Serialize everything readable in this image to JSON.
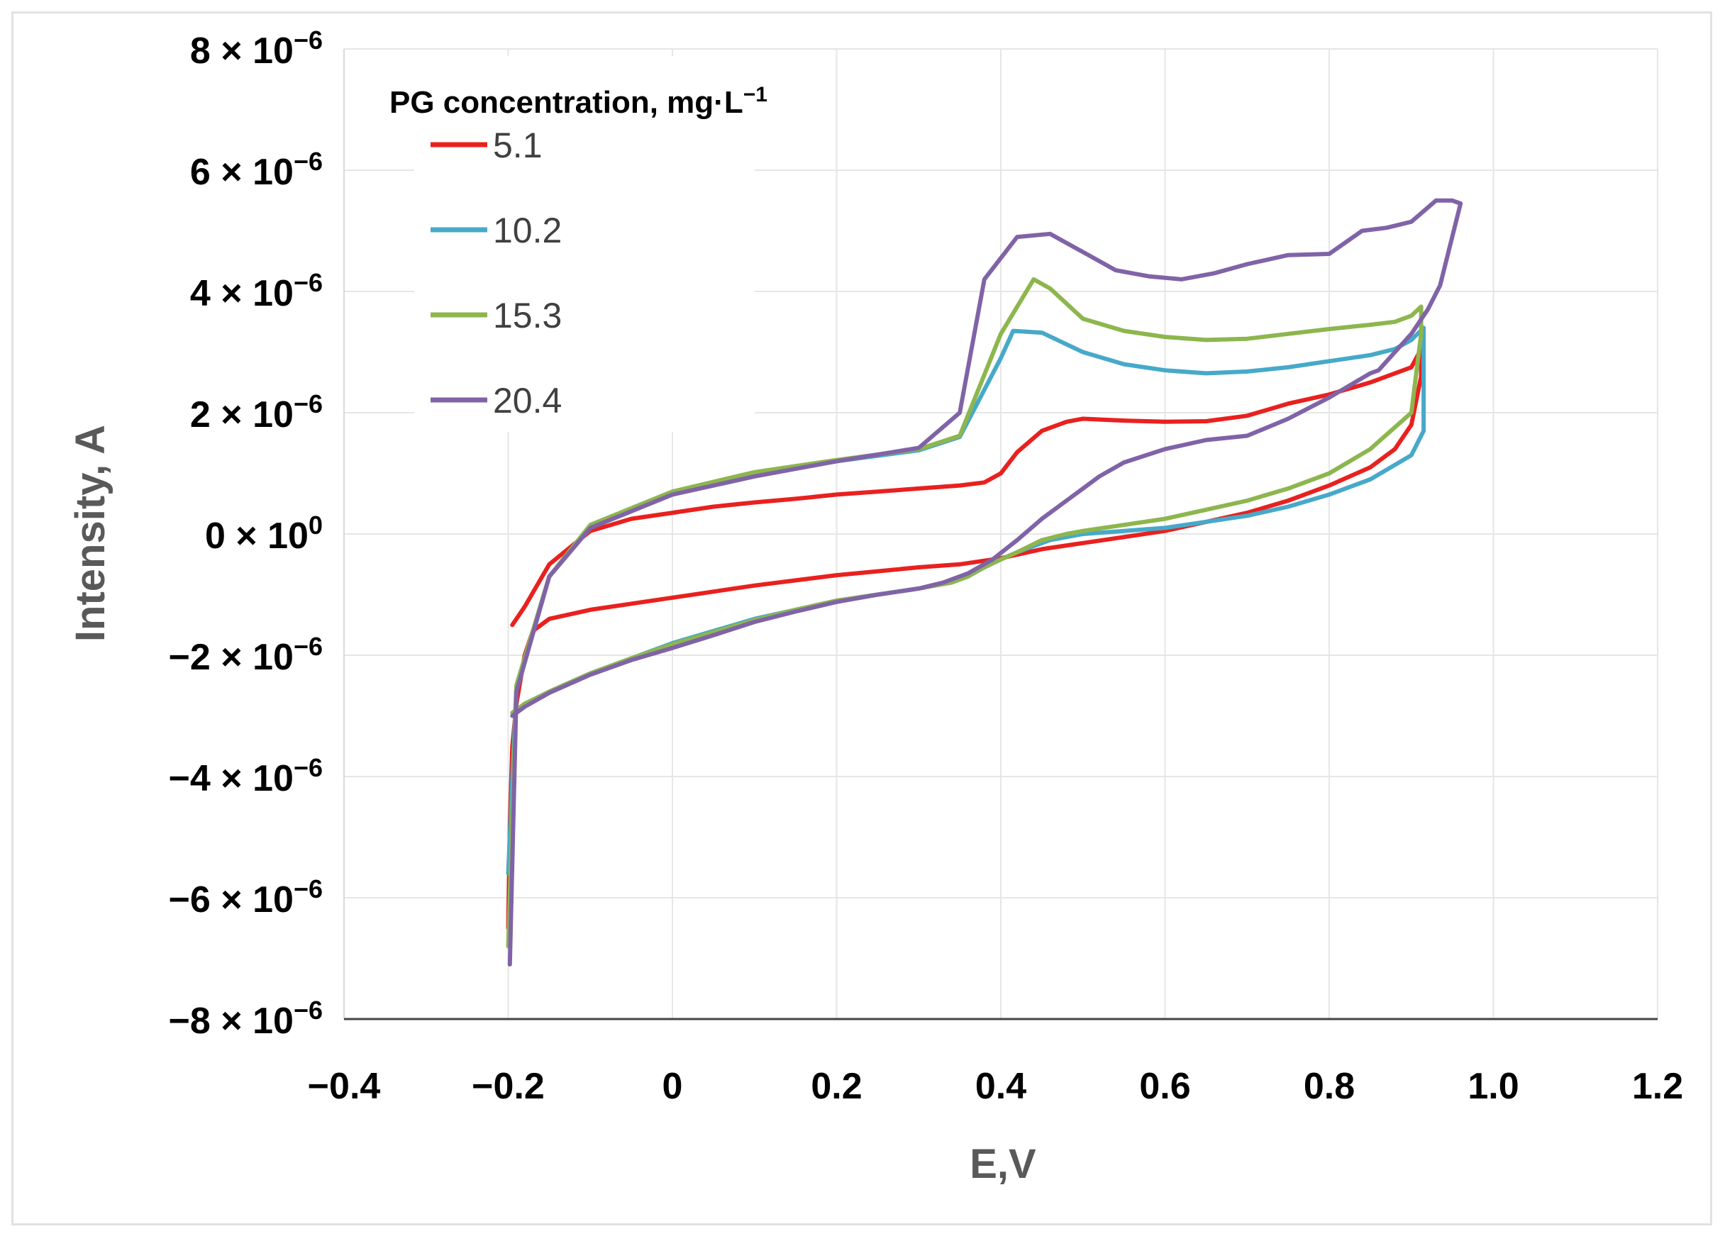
{
  "chart_data": {
    "type": "line",
    "title": "",
    "xlabel": "E,V",
    "ylabel": "Intensity, A",
    "xlim": [
      -0.4,
      1.2
    ],
    "ylim": [
      -8e-06,
      8e-06
    ],
    "x_ticks": [
      -0.4,
      -0.2,
      0,
      0.2,
      0.4,
      0.6,
      0.8,
      1.0,
      1.2
    ],
    "x_tick_labels": [
      "−0.4",
      "−0.2",
      "0",
      "0.2",
      "0.4",
      "0.6",
      "0.8",
      "1.0",
      "1.2"
    ],
    "y_ticks": [
      8e-06,
      6e-06,
      4e-06,
      2e-06,
      0,
      -2e-06,
      -4e-06,
      -6e-06,
      -8e-06
    ],
    "y_tick_labels": [
      {
        "mantissa": "8 × 10",
        "exp": "−6"
      },
      {
        "mantissa": "6 × 10",
        "exp": "−6"
      },
      {
        "mantissa": "4 × 10",
        "exp": "−6"
      },
      {
        "mantissa": "2 × 10",
        "exp": "−6"
      },
      {
        "mantissa": "0 × 10",
        "exp": "0"
      },
      {
        "mantissa": "−2 × 10",
        "exp": "−6"
      },
      {
        "mantissa": "−4 × 10",
        "exp": "−6"
      },
      {
        "mantissa": "−6 × 10",
        "exp": "−6"
      },
      {
        "mantissa": "−8 × 10",
        "exp": "−6"
      }
    ],
    "grid": true,
    "legend": {
      "title": "PG concentration, mg·L",
      "title_exp": "−1",
      "placement": "top-left"
    },
    "series": [
      {
        "name": "5.1",
        "color": "#e8211f",
        "x": [
          -0.195,
          -0.18,
          -0.15,
          -0.1,
          -0.05,
          0,
          0.05,
          0.1,
          0.15,
          0.2,
          0.25,
          0.3,
          0.35,
          0.38,
          0.4,
          0.42,
          0.45,
          0.48,
          0.5,
          0.55,
          0.6,
          0.65,
          0.7,
          0.75,
          0.8,
          0.85,
          0.9,
          0.912,
          0.912,
          0.9,
          0.88,
          0.85,
          0.8,
          0.75,
          0.7,
          0.65,
          0.6,
          0.55,
          0.5,
          0.45,
          0.4,
          0.35,
          0.3,
          0.2,
          0.1,
          0,
          -0.1,
          -0.15,
          -0.17,
          -0.18,
          -0.19,
          -0.195,
          -0.198,
          -0.2
        ],
        "y": [
          -1.5e-06,
          -1.2e-06,
          -5e-07,
          5e-08,
          2.5e-07,
          3.5e-07,
          4.5e-07,
          5.2e-07,
          5.8e-07,
          6.5e-07,
          7e-07,
          7.5e-07,
          8e-07,
          8.5e-07,
          1e-06,
          1.35e-06,
          1.7e-06,
          1.85e-06,
          1.9e-06,
          1.87e-06,
          1.85e-06,
          1.86e-06,
          1.95e-06,
          2.15e-06,
          2.3e-06,
          2.5e-06,
          2.75e-06,
          3.05e-06,
          2.6e-06,
          1.8e-06,
          1.4e-06,
          1.1e-06,
          8e-07,
          5.5e-07,
          3.5e-07,
          2e-07,
          5e-08,
          -5e-08,
          -1.5e-07,
          -2.5e-07,
          -4e-07,
          -5e-07,
          -5.5e-07,
          -6.8e-07,
          -8.5e-07,
          -1.05e-06,
          -1.25e-06,
          -1.4e-06,
          -1.6e-06,
          -2e-06,
          -2.8e-06,
          -3.5e-06,
          -4.8e-06,
          -6.5e-06
        ]
      },
      {
        "name": "10.2",
        "color": "#47a9c9",
        "x": [
          -0.195,
          -0.18,
          -0.15,
          -0.1,
          -0.05,
          0,
          0.05,
          0.1,
          0.15,
          0.2,
          0.25,
          0.3,
          0.34,
          0.36,
          0.38,
          0.4,
          0.42,
          0.44,
          0.46,
          0.5,
          0.55,
          0.6,
          0.65,
          0.7,
          0.75,
          0.8,
          0.85,
          0.9,
          0.915,
          0.915,
          0.9,
          0.88,
          0.85,
          0.8,
          0.75,
          0.7,
          0.65,
          0.6,
          0.55,
          0.5,
          0.45,
          0.415,
          0.4,
          0.35,
          0.3,
          0.2,
          0.1,
          0,
          -0.1,
          -0.15,
          -0.19,
          -0.2
        ],
        "y": [
          -2.95e-06,
          -2.8e-06,
          -2.6e-06,
          -2.3e-06,
          -2.05e-06,
          -1.8e-06,
          -1.6e-06,
          -1.4e-06,
          -1.25e-06,
          -1.1e-06,
          -1e-06,
          -9e-07,
          -8e-07,
          -7e-07,
          -5.5e-07,
          -4.2e-07,
          -3e-07,
          -2e-07,
          -1e-07,
          0.0,
          5e-08,
          1e-07,
          2e-07,
          3e-07,
          4.5e-07,
          6.5e-07,
          9e-07,
          1.3e-06,
          1.7e-06,
          3.4e-06,
          3.2e-06,
          3.05e-06,
          2.95e-06,
          2.85e-06,
          2.75e-06,
          2.68e-06,
          2.65e-06,
          2.7e-06,
          2.8e-06,
          3e-06,
          3.32e-06,
          3.35e-06,
          2.9e-06,
          1.6e-06,
          1.38e-06,
          1.2e-06,
          9.8e-07,
          6.5e-07,
          1e-07,
          -7e-07,
          -2.5e-06,
          -5.6e-06
        ]
      },
      {
        "name": "15.3",
        "color": "#8db64e",
        "x": [
          -0.195,
          -0.18,
          -0.15,
          -0.1,
          -0.05,
          0,
          0.05,
          0.1,
          0.15,
          0.2,
          0.25,
          0.3,
          0.34,
          0.36,
          0.38,
          0.4,
          0.42,
          0.45,
          0.48,
          0.5,
          0.55,
          0.6,
          0.65,
          0.7,
          0.75,
          0.8,
          0.85,
          0.9,
          0.912,
          0.912,
          0.9,
          0.88,
          0.85,
          0.8,
          0.75,
          0.7,
          0.65,
          0.6,
          0.55,
          0.5,
          0.46,
          0.44,
          0.4,
          0.35,
          0.3,
          0.2,
          0.1,
          0,
          -0.1,
          -0.15,
          -0.19,
          -0.2
        ],
        "y": [
          -2.95e-06,
          -2.8e-06,
          -2.6e-06,
          -2.3e-06,
          -2.05e-06,
          -1.82e-06,
          -1.62e-06,
          -1.42e-06,
          -1.25e-06,
          -1.1e-06,
          -1e-06,
          -9e-07,
          -8e-07,
          -7e-07,
          -5.5e-07,
          -4.2e-07,
          -3e-07,
          -1e-07,
          0.0,
          5e-08,
          1.5e-07,
          2.5e-07,
          4e-07,
          5.5e-07,
          7.5e-07,
          1e-06,
          1.4e-06,
          2e-06,
          3.3e-06,
          3.75e-06,
          3.6e-06,
          3.5e-06,
          3.45e-06,
          3.38e-06,
          3.3e-06,
          3.22e-06,
          3.2e-06,
          3.25e-06,
          3.35e-06,
          3.55e-06,
          4.05e-06,
          4.2e-06,
          3.3e-06,
          1.62e-06,
          1.4e-06,
          1.22e-06,
          1.02e-06,
          7e-07,
          1.5e-07,
          -7e-07,
          -2.5e-06,
          -6.8e-06
        ]
      },
      {
        "name": "20.4",
        "color": "#8063a7",
        "x": [
          -0.195,
          -0.18,
          -0.15,
          -0.1,
          -0.05,
          0,
          0.05,
          0.1,
          0.15,
          0.2,
          0.25,
          0.3,
          0.33,
          0.36,
          0.39,
          0.42,
          0.45,
          0.48,
          0.5,
          0.52,
          0.55,
          0.6,
          0.65,
          0.7,
          0.75,
          0.8,
          0.85,
          0.86,
          0.88,
          0.9,
          0.92,
          0.935,
          0.96,
          0.96,
          0.95,
          0.93,
          0.9,
          0.87,
          0.84,
          0.8,
          0.75,
          0.7,
          0.66,
          0.62,
          0.58,
          0.54,
          0.5,
          0.46,
          0.42,
          0.38,
          0.35,
          0.3,
          0.2,
          0.1,
          0,
          -0.1,
          -0.15,
          -0.19,
          -0.198
        ],
        "y": [
          -3e-06,
          -2.85e-06,
          -2.62e-06,
          -2.32e-06,
          -2.08e-06,
          -1.88e-06,
          -1.67e-06,
          -1.45e-06,
          -1.28e-06,
          -1.12e-06,
          -1e-06,
          -9e-07,
          -8e-07,
          -6.5e-07,
          -4.2e-07,
          -1e-07,
          2.5e-07,
          5.5e-07,
          7.5e-07,
          9.5e-07,
          1.18e-06,
          1.4e-06,
          1.55e-06,
          1.62e-06,
          1.9e-06,
          2.25e-06,
          2.65e-06,
          2.7e-06,
          3e-06,
          3.3e-06,
          3.7e-06,
          4.1e-06,
          5.45e-06,
          5.45e-06,
          5.5e-06,
          5.5e-06,
          5.15e-06,
          5.05e-06,
          5e-06,
          4.62e-06,
          4.6e-06,
          4.45e-06,
          4.3e-06,
          4.2e-06,
          4.25e-06,
          4.35e-06,
          4.65e-06,
          4.95e-06,
          4.9e-06,
          4.2e-06,
          2e-06,
          1.42e-06,
          1.2e-06,
          9.5e-07,
          6.5e-07,
          1e-07,
          -7e-07,
          -2.6e-06,
          -7.1e-06
        ]
      }
    ]
  }
}
